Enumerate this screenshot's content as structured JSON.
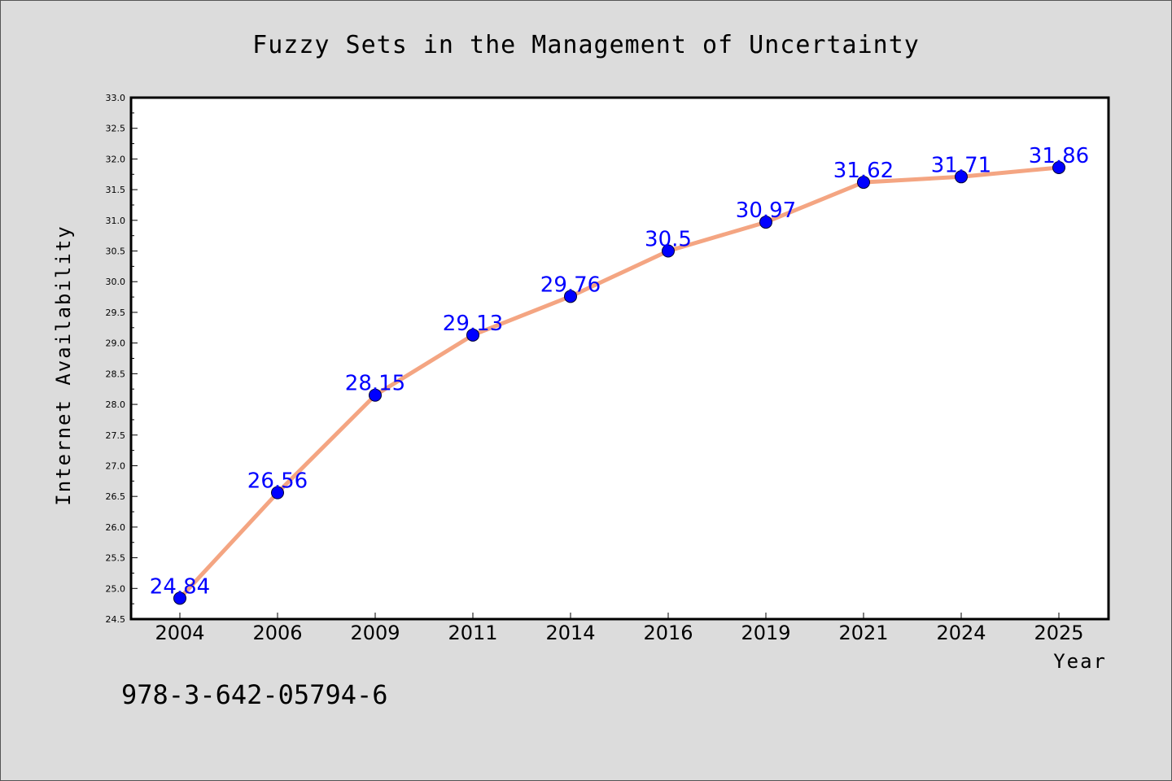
{
  "chart_data": {
    "type": "line",
    "title": "Fuzzy Sets in the Management of Uncertainty",
    "xlabel": "Year",
    "ylabel": "Internet Availability",
    "categories": [
      "2004",
      "2006",
      "2009",
      "2011",
      "2014",
      "2016",
      "2019",
      "2021",
      "2024",
      "2025"
    ],
    "series": [
      {
        "values": [
          24.84,
          26.56,
          28.15,
          29.13,
          29.76,
          30.5,
          30.97,
          31.62,
          31.71,
          31.86
        ]
      }
    ],
    "data_labels": [
      "24.84",
      "26.56",
      "28.15",
      "29.13",
      "29.76",
      "30.5",
      "30.97",
      "31.62",
      "31.71",
      "31.86"
    ],
    "ylim": [
      24.5,
      33.0
    ],
    "yticks": [
      "24.5",
      "25.0",
      "25.5",
      "26.0",
      "26.5",
      "27.0",
      "27.5",
      "28.0",
      "28.5",
      "29.0",
      "29.5",
      "30.0",
      "30.5",
      "31.0",
      "31.5",
      "32.0",
      "32.5",
      "33.0"
    ],
    "grid": false,
    "colors": {
      "line": "#f4a582",
      "marker": "#0000ff",
      "label": "#0000ff",
      "background": "#dcdcdc",
      "plot_background": "#ffffff"
    }
  },
  "footer": {
    "isbn": "978-3-642-05794-6"
  }
}
